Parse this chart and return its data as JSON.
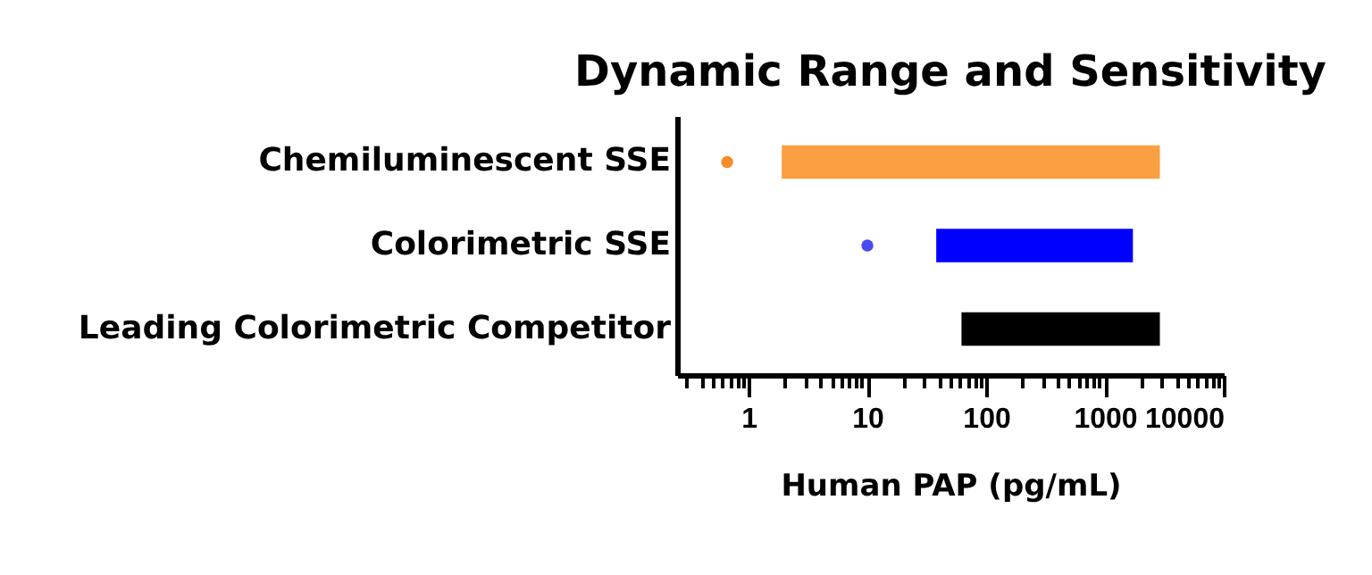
{
  "chart_data": {
    "type": "bar",
    "orientation": "horizontal",
    "title": "Dynamic Range and Sensitivity",
    "xlabel": "Human PAP (pg/mL)",
    "categories": [
      "Chemiluminescent SSE",
      "Colorimetric SSE",
      "Leading Colorimetric Competitor"
    ],
    "log": "x",
    "xlim": [
      0.25,
      10000
    ],
    "xticks": [
      {
        "value": 0.3,
        "label": null
      },
      {
        "value": 0.4,
        "label": null
      },
      {
        "value": 0.5,
        "label": null
      },
      {
        "value": 0.6,
        "label": null
      },
      {
        "value": 0.7,
        "label": null
      },
      {
        "value": 0.8,
        "label": null
      },
      {
        "value": 0.9,
        "label": null
      },
      1,
      {
        "value": 2,
        "label": null
      },
      {
        "value": 3,
        "label": null
      },
      {
        "value": 4,
        "label": null
      },
      {
        "value": 5,
        "label": null
      },
      {
        "value": 6,
        "label": null
      },
      {
        "value": 7,
        "label": null
      },
      {
        "value": 8,
        "label": null
      },
      {
        "value": 9,
        "label": null
      },
      10,
      {
        "value": 20,
        "label": null
      },
      {
        "value": 30,
        "label": null
      },
      {
        "value": 40,
        "label": null
      },
      {
        "value": 50,
        "label": null
      },
      {
        "value": 60,
        "label": null
      },
      {
        "value": 70,
        "label": null
      },
      {
        "value": 80,
        "label": null
      },
      {
        "value": 90,
        "label": null
      },
      100,
      {
        "value": 200,
        "label": null
      },
      {
        "value": 300,
        "label": null
      },
      {
        "value": 400,
        "label": null
      },
      {
        "value": 500,
        "label": null
      },
      {
        "value": 600,
        "label": null
      },
      {
        "value": 700,
        "label": null
      },
      {
        "value": 800,
        "label": null
      },
      {
        "value": 900,
        "label": null
      },
      1000,
      {
        "value": 2000,
        "label": null
      },
      {
        "value": 3000,
        "label": null
      },
      {
        "value": 4000,
        "label": null
      },
      {
        "value": 5000,
        "label": null
      },
      {
        "value": 6000,
        "label": null
      },
      {
        "value": 7000,
        "label": null
      },
      {
        "value": 8000,
        "label": null
      },
      {
        "value": 9000,
        "label": null
      },
      10000
    ],
    "grid": false,
    "series": [
      {
        "colors": [
          "#fba042",
          "#0000ff",
          "#000000"
        ],
        "base": [
          1.9,
          38,
          62
        ],
        "values": [
          2898,
          1682,
          2838
        ]
      },
      {
        "type": "scatter",
        "marker": "circle",
        "x": [
          "Chemiluminescent SSE",
          "Colorimetric SSE"
        ],
        "colors": [
          "#f68b2a",
          "#4a4af0"
        ],
        "values": [
          0.66,
          10
        ]
      }
    ]
  }
}
